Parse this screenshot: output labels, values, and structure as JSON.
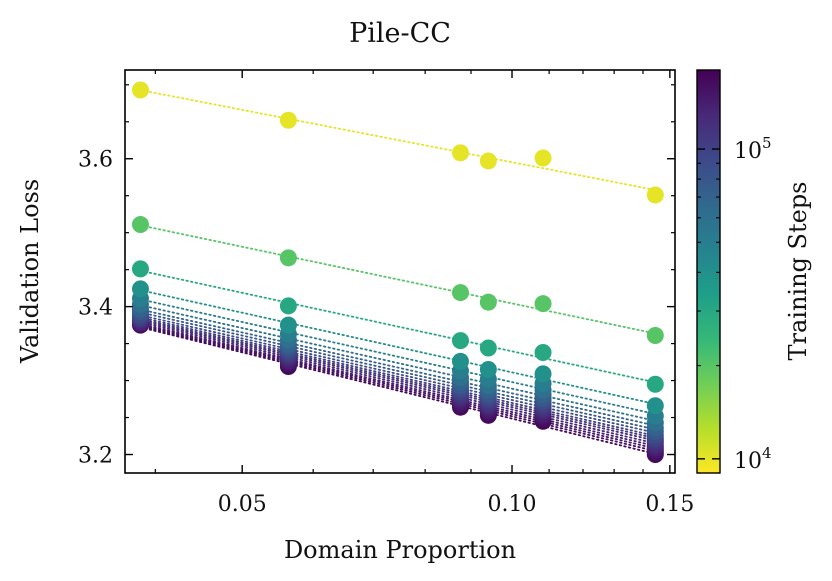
{
  "chart_data": {
    "type": "scatter",
    "title": "Pile-CC",
    "xlabel": "Domain Proportion",
    "ylabel": "Validation Loss",
    "xscale": "log",
    "xlim": [
      0.037,
      0.152
    ],
    "ylim": [
      3.175,
      3.72
    ],
    "x_ticks": [
      0.05,
      0.1,
      0.15
    ],
    "x_tick_labels": [
      "0.05",
      "0.10",
      "0.15"
    ],
    "y_ticks": [
      3.2,
      3.4,
      3.6
    ],
    "y_tick_labels": [
      "3.2",
      "3.4",
      "3.6"
    ],
    "fit_style": "dotted line per series",
    "colorbar": {
      "label": "Training Steps",
      "scale": "log",
      "min": 9000,
      "max": 180000,
      "ticks": [
        10000,
        100000
      ],
      "tick_labels": [
        {
          "base": "10",
          "exp": "4"
        },
        {
          "base": "10",
          "exp": "5"
        }
      ],
      "colormap": [
        "#fde725",
        "#b5de2b",
        "#6ece58",
        "#35b779",
        "#1f9e89",
        "#26828e",
        "#31688e",
        "#3e4989",
        "#482878",
        "#440154"
      ]
    },
    "x": [
      0.0385,
      0.0563,
      0.0876,
      0.0941,
      0.1083,
      0.1445
    ],
    "series": [
      {
        "name": "10000 steps",
        "steps": 10000,
        "values": [
          3.693,
          3.652,
          3.608,
          3.597,
          3.601,
          3.551
        ]
      },
      {
        "name": "20000 steps",
        "steps": 20000,
        "values": [
          3.511,
          3.466,
          3.419,
          3.406,
          3.404,
          3.361
        ]
      },
      {
        "name": "30000 steps",
        "steps": 30000,
        "values": [
          3.451,
          3.401,
          3.354,
          3.344,
          3.338,
          3.295
        ]
      },
      {
        "name": "40000 steps",
        "steps": 40000,
        "values": [
          3.424,
          3.375,
          3.326,
          3.315,
          3.309,
          3.266
        ]
      },
      {
        "name": "50000 steps",
        "steps": 50000,
        "values": [
          3.411,
          3.363,
          3.313,
          3.302,
          3.296,
          3.252
        ]
      },
      {
        "name": "60000 steps",
        "steps": 60000,
        "values": [
          3.403,
          3.355,
          3.304,
          3.293,
          3.287,
          3.243
        ]
      },
      {
        "name": "70000 steps",
        "steps": 70000,
        "values": [
          3.397,
          3.349,
          3.298,
          3.287,
          3.281,
          3.236
        ]
      },
      {
        "name": "80000 steps",
        "steps": 80000,
        "values": [
          3.393,
          3.345,
          3.293,
          3.282,
          3.276,
          3.231
        ]
      },
      {
        "name": "90000 steps",
        "steps": 90000,
        "values": [
          3.389,
          3.341,
          3.289,
          3.278,
          3.272,
          3.226
        ]
      },
      {
        "name": "100000 steps",
        "steps": 100000,
        "values": [
          3.386,
          3.338,
          3.285,
          3.274,
          3.268,
          3.222
        ]
      },
      {
        "name": "110000 steps",
        "steps": 110000,
        "values": [
          3.384,
          3.335,
          3.282,
          3.271,
          3.265,
          3.219
        ]
      },
      {
        "name": "120000 steps",
        "steps": 120000,
        "values": [
          3.382,
          3.333,
          3.279,
          3.268,
          3.262,
          3.216
        ]
      },
      {
        "name": "130000 steps",
        "steps": 130000,
        "values": [
          3.38,
          3.33,
          3.276,
          3.265,
          3.259,
          3.212
        ]
      },
      {
        "name": "140000 steps",
        "steps": 140000,
        "values": [
          3.378,
          3.327,
          3.273,
          3.262,
          3.255,
          3.209
        ]
      },
      {
        "name": "150000 steps",
        "steps": 150000,
        "values": [
          3.377,
          3.325,
          3.27,
          3.259,
          3.252,
          3.206
        ]
      },
      {
        "name": "160000 steps",
        "steps": 160000,
        "values": [
          3.376,
          3.322,
          3.267,
          3.256,
          3.249,
          3.203
        ]
      },
      {
        "name": "170000 steps",
        "steps": 170000,
        "values": [
          3.375,
          3.319,
          3.264,
          3.253,
          3.245,
          3.2
        ]
      }
    ]
  }
}
